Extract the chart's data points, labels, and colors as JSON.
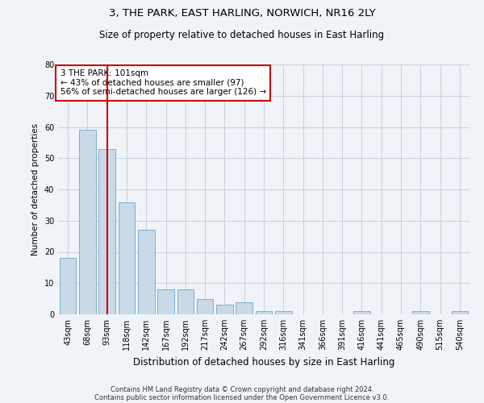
{
  "title1": "3, THE PARK, EAST HARLING, NORWICH, NR16 2LY",
  "title2": "Size of property relative to detached houses in East Harling",
  "xlabel": "Distribution of detached houses by size in East Harling",
  "ylabel": "Number of detached properties",
  "categories": [
    "43sqm",
    "68sqm",
    "93sqm",
    "118sqm",
    "142sqm",
    "167sqm",
    "192sqm",
    "217sqm",
    "242sqm",
    "267sqm",
    "292sqm",
    "316sqm",
    "341sqm",
    "366sqm",
    "391sqm",
    "416sqm",
    "441sqm",
    "465sqm",
    "490sqm",
    "515sqm",
    "540sqm"
  ],
  "values": [
    18,
    59,
    53,
    36,
    27,
    8,
    8,
    5,
    3,
    4,
    1,
    1,
    0,
    0,
    0,
    1,
    0,
    0,
    1,
    0,
    1
  ],
  "bar_color": "#c9d9e8",
  "bar_edge_color": "#7bafd4",
  "grid_color": "#c8d4de",
  "background_color": "#f0f4f8",
  "annotation_text": "3 THE PARK: 101sqm\n← 43% of detached houses are smaller (97)\n56% of semi-detached houses are larger (126) →",
  "annotation_box_color": "#ffffff",
  "annotation_box_edge_color": "#cc0000",
  "vline_x": 2.0,
  "vline_color": "#cc0000",
  "ylim": [
    0,
    80
  ],
  "yticks": [
    0,
    10,
    20,
    30,
    40,
    50,
    60,
    70,
    80
  ],
  "footnote1": "Contains HM Land Registry data © Crown copyright and database right 2024.",
  "footnote2": "Contains public sector information licensed under the Open Government Licence v3.0."
}
